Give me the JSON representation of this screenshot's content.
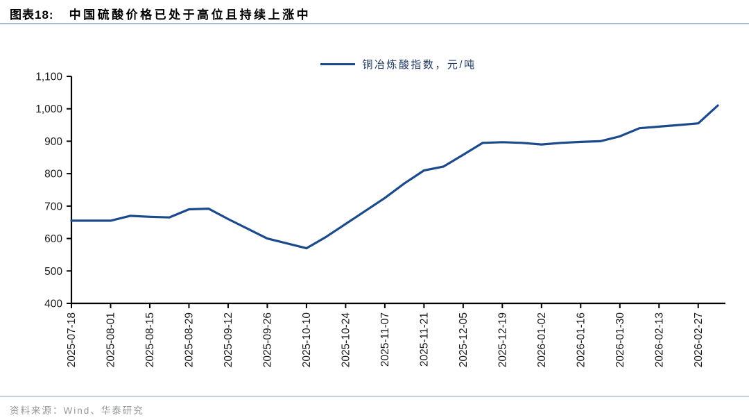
{
  "header": {
    "figure_label": "图表18:",
    "title": "中国硫酸价格已处于高位且持续上涨中"
  },
  "legend": {
    "label": "铜冶炼酸指数，元/吨"
  },
  "footer": {
    "source": "资料来源：Wind、华泰研究"
  },
  "colors": {
    "line": "#1b4a8c",
    "axis": "#000000",
    "tick_label": "#1a1a1a",
    "legend_text": "#1f3864",
    "title_rule": "#a4bcd6",
    "footer_rule": "#c3d0de",
    "source_text": "#96989b"
  },
  "chart_data": {
    "type": "line",
    "title": "铜冶炼酸指数",
    "unit": "元/吨",
    "grid": false,
    "legend_position": "top-center",
    "ylim": [
      400,
      1100
    ],
    "y_ticks": [
      400,
      500,
      600,
      700,
      800,
      900,
      1000,
      1100
    ],
    "x": [
      "2025-07-18",
      "2025-07-25",
      "2025-08-01",
      "2025-08-08",
      "2025-08-15",
      "2025-08-22",
      "2025-08-29",
      "2025-09-05",
      "2025-09-12",
      "2025-09-19",
      "2025-09-26",
      "2025-10-03",
      "2025-10-10",
      "2025-10-17",
      "2025-10-24",
      "2025-10-31",
      "2025-11-07",
      "2025-11-14",
      "2025-11-21",
      "2025-11-28",
      "2025-12-05",
      "2025-12-12",
      "2025-12-19",
      "2025-12-26",
      "2026-01-02",
      "2026-01-09",
      "2026-01-16",
      "2026-01-23",
      "2026-01-30",
      "2026-02-06",
      "2026-02-13",
      "2026-02-20",
      "2026-02-27",
      "2026-03-06"
    ],
    "x_tick_labels": [
      "2025-07-18",
      "2025-08-01",
      "2025-08-15",
      "2025-08-29",
      "2025-09-12",
      "2025-09-26",
      "2025-10-10",
      "2025-10-24",
      "2025-11-07",
      "2025-11-21",
      "2025-12-05",
      "2025-12-19",
      "2026-01-02",
      "2026-01-16",
      "2026-01-30",
      "2026-02-13",
      "2026-02-27"
    ],
    "series": [
      {
        "name": "铜冶炼酸指数，元/吨",
        "values": [
          655,
          655,
          655,
          670,
          667,
          665,
          690,
          692,
          660,
          630,
          600,
          585,
          570,
          605,
          645,
          685,
          725,
          770,
          810,
          822,
          858,
          895,
          897,
          895,
          890,
          895,
          898,
          900,
          915,
          940,
          945,
          950,
          955,
          1010
        ]
      }
    ]
  }
}
